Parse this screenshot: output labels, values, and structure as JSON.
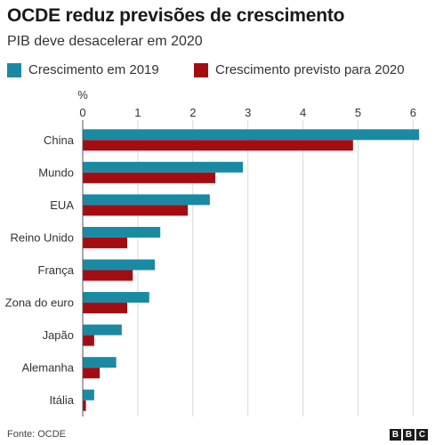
{
  "header": {
    "title": "OCDE reduz previsões de crescimento",
    "subtitle": "PIB deve desacelerar em 2020"
  },
  "colors": {
    "series_2019": "#1a8aa3",
    "series_2020": "#a30d12"
  },
  "chart_data": {
    "type": "bar",
    "orientation": "horizontal",
    "unit_label": "%",
    "categories": [
      "China",
      "Mundo",
      "EUA",
      "Reino Unido",
      "França",
      "Zona do euro",
      "Japão",
      "Alemanha",
      "Itália"
    ],
    "series": [
      {
        "name": "Crescimento em 2019",
        "values": [
          6.1,
          2.9,
          2.3,
          1.4,
          1.3,
          1.2,
          0.7,
          0.6,
          0.2
        ]
      },
      {
        "name": "Crescimento previsto para 2020",
        "values": [
          4.9,
          2.4,
          1.9,
          0.8,
          0.9,
          0.8,
          0.2,
          0.3,
          0.05
        ]
      }
    ],
    "xlim": [
      0,
      6.3
    ],
    "xticks": [
      0,
      1,
      2,
      3,
      4,
      5,
      6
    ],
    "grid": true,
    "legend_placement": "top"
  },
  "footer": {
    "source": "Fonte: OCDE",
    "logo_letters": [
      "B",
      "B",
      "C"
    ]
  }
}
